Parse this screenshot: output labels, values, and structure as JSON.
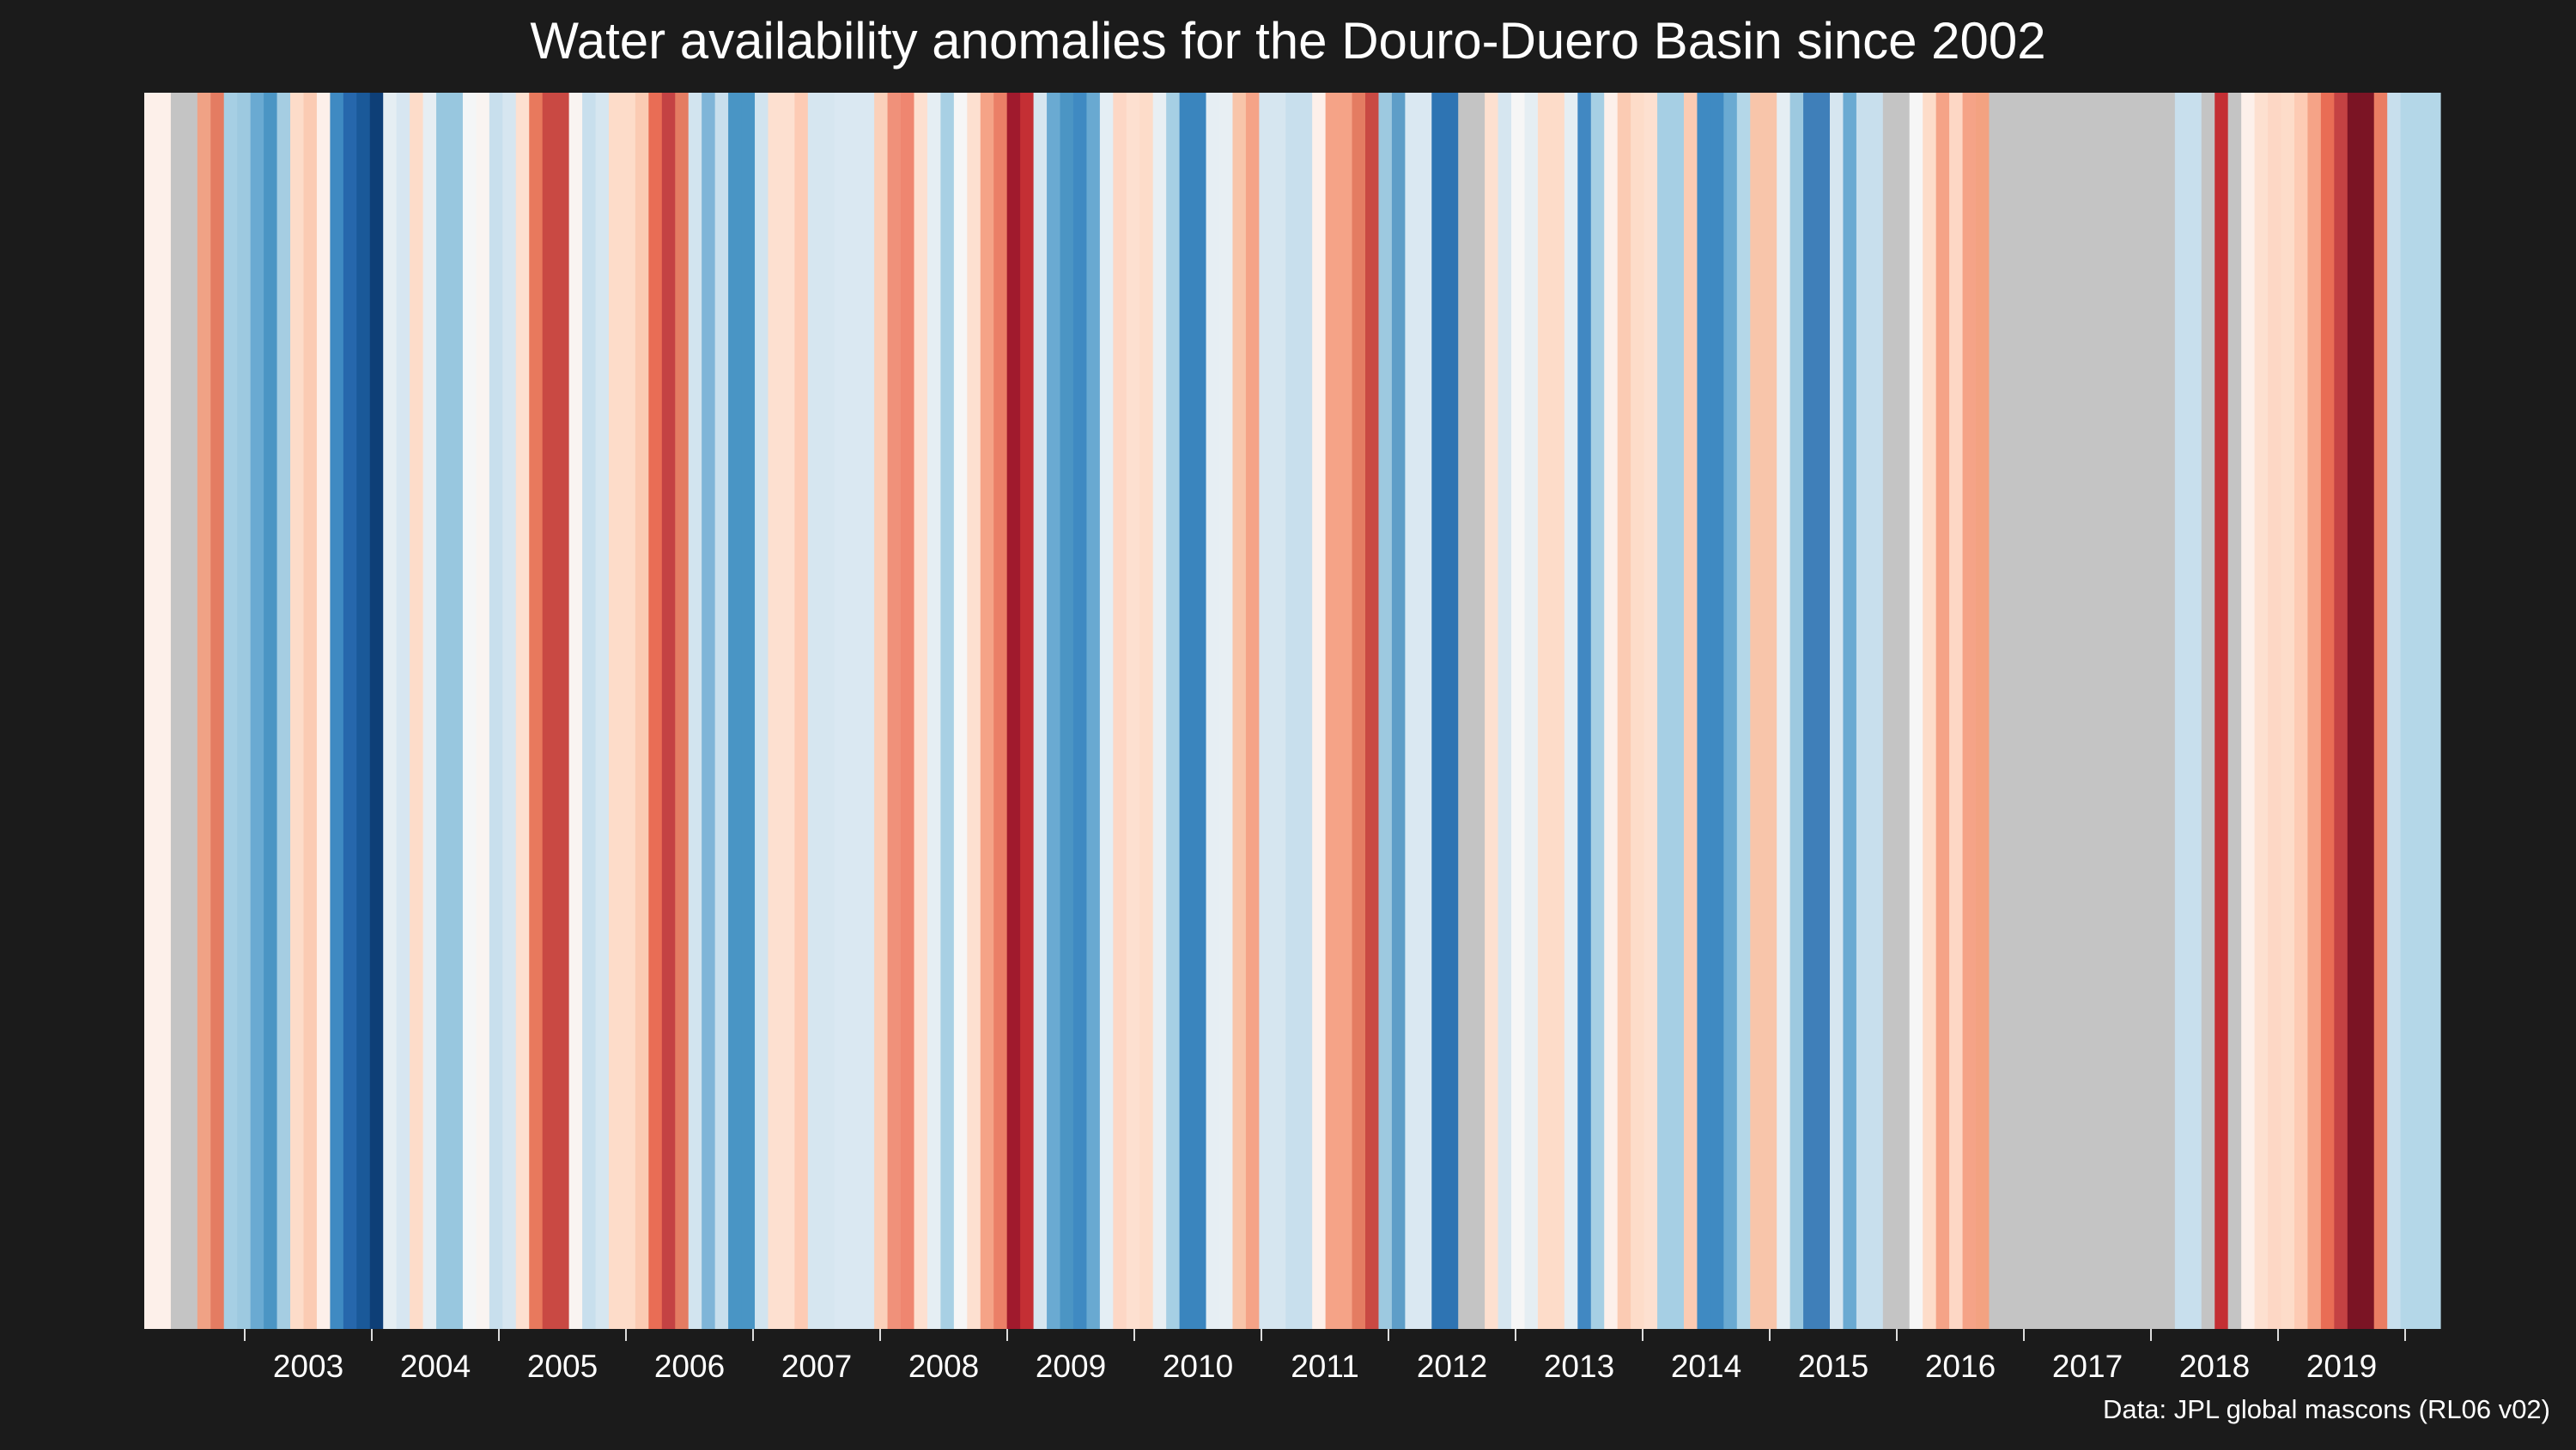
{
  "chart_data": {
    "type": "heatmap",
    "title": "Water availability anomalies for the Douro-Duero Basin since 2002",
    "xlabel": "",
    "ylabel": "",
    "x_tick_labels": [
      "2003",
      "2004",
      "2005",
      "2006",
      "2007",
      "2008",
      "2009",
      "2010",
      "2011",
      "2012",
      "2013",
      "2014",
      "2015",
      "2016",
      "2017",
      "2018",
      "2019"
    ],
    "x_range": [
      "2002-04",
      "2020-01"
    ],
    "missing_color": "#c4c4c4",
    "stripe_colors": [
      "#fdf0ea",
      "#fdf0ea",
      "#c4c4c4",
      "#c4c4c4",
      "#f0a285",
      "#e47c62",
      "#a6cfe4",
      "#9dc9e0",
      "#6aaad2",
      "#4b95c4",
      "#a5cde2",
      "#fddcc9",
      "#fbcbb3",
      "#fdf0ea",
      "#3f8ac2",
      "#2667ac",
      "#1a5999",
      "#0e3f77",
      "#e5eef3",
      "#d7e6f1",
      "#fddcc9",
      "#e6eef3",
      "#98c7df",
      "#98c7df",
      "#f4f6f7",
      "#f9f4f1",
      "#c8dfed",
      "#d6e6f0",
      "#fde0d0",
      "#e8795d",
      "#c94943",
      "#c94943",
      "#f9f4f1",
      "#c8dfed",
      "#d6e6f0",
      "#fddcc9",
      "#fddcc9",
      "#fbcbb3",
      "#e96d55",
      "#c44243",
      "#e47c62",
      "#d2e4ef",
      "#7fb5d8",
      "#c8dfed",
      "#4995c5",
      "#4995c5",
      "#d2e4ef",
      "#fde0d0",
      "#fde0d0",
      "#fdcbb4",
      "#d6e6f0",
      "#d6e6f0",
      "#dae8f2",
      "#dae8f2",
      "#dae8f2",
      "#fbd0ba",
      "#f0917a",
      "#ef8670",
      "#fde0d0",
      "#e5eef3",
      "#a8d0e4",
      "#f6f6f6",
      "#fde0d0",
      "#f5a387",
      "#eb7f67",
      "#a01a2d",
      "#c42f34",
      "#d6e6f0",
      "#6aaad2",
      "#4b95c4",
      "#3f8ac2",
      "#69a9d1",
      "#e4eef4",
      "#fdd7c5",
      "#fde0d0",
      "#fddcc9",
      "#e8eff3",
      "#a6cfe4",
      "#3a85be",
      "#3a85be",
      "#e6eef3",
      "#e8eff3",
      "#f8c5aa",
      "#f5a387",
      "#d6e6f0",
      "#d6e6f0",
      "#c8dfed",
      "#c8dfed",
      "#fdf0ea",
      "#f5a387",
      "#f5a387",
      "#e47c62",
      "#c94943",
      "#9dc9e0",
      "#5e9ec8",
      "#dae8f2",
      "#dae8f2",
      "#2e74b3",
      "#2e74b3",
      "#c4c4c4",
      "#c4c4c4",
      "#fde0d0",
      "#d6e6f0",
      "#f6f6f6",
      "#e5eef3",
      "#fddcc9",
      "#fddcc9",
      "#e5eef3",
      "#4188c2",
      "#a6cfe4",
      "#fdf0ea",
      "#fbcbb3",
      "#fddcc9",
      "#fde0d0",
      "#a6cfe4",
      "#a6cfe4",
      "#fbcbb3",
      "#3f8ac2",
      "#3f8ac2",
      "#6aaad2",
      "#b4d7e8",
      "#f8c5aa",
      "#f8c5aa",
      "#e5eef3",
      "#9dc9e0",
      "#3f7fb9",
      "#3f7fb9",
      "#d6e6f0",
      "#6aaad2",
      "#c8dfed",
      "#c8dfed",
      "#c4c4c4",
      "#c4c4c4",
      "#f6f6f6",
      "#fddcc9",
      "#f5a387",
      "#fdd7c5",
      "#f5a387",
      "#f3a281",
      "#c4c4c4",
      "#c4c4c4",
      "#c4c4c4",
      "#c4c4c4",
      "#c4c4c4",
      "#c4c4c4",
      "#c4c4c4",
      "#c4c4c4",
      "#c4c4c4",
      "#c4c4c4",
      "#c4c4c4",
      "#c4c4c4",
      "#c4c4c4",
      "#c4c4c4",
      "#c8dfed",
      "#c8dfed",
      "#c4c4c4",
      "#c42f34",
      "#c4c4c4",
      "#fdf0ea",
      "#fde0d0",
      "#fdd7c5",
      "#fddcc9",
      "#fdcbb4",
      "#f5a387",
      "#e96d55",
      "#c44243",
      "#7b1424",
      "#7b1424",
      "#ea7d63",
      "#c8dfed",
      "#b4d7e8",
      "#b4d7e8",
      "#b4d7e8"
    ]
  },
  "source": "Data: JPL global mascons (RL06 v02)"
}
